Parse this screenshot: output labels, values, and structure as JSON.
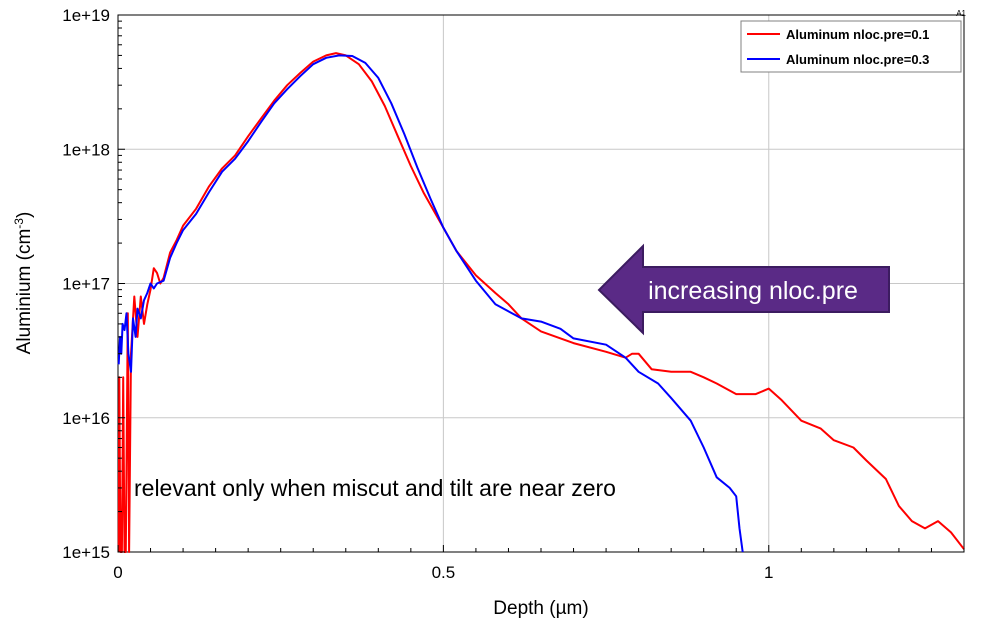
{
  "chart_data": {
    "type": "line",
    "title": "",
    "corner_label": "A1",
    "xlabel": "Depth (µm)",
    "ylabel_main": "Aluminium (cm",
    "ylabel_sup": "-3",
    "ylabel_close": ")",
    "xlim": [
      0,
      1.3
    ],
    "ylim": [
      1000000000000000.0,
      1e+19
    ],
    "yscale": "log",
    "grid": true,
    "xticks": [
      0,
      0.5,
      1
    ],
    "xtick_labels": [
      "0",
      "0.5",
      "1"
    ],
    "yticks": [
      1000000000000000.0,
      1e+16,
      1e+17,
      1e+18,
      1e+19
    ],
    "ytick_labels": [
      "1e+15",
      "1e+16",
      "1e+17",
      "1e+18",
      "1e+19"
    ],
    "legend_position": "top-right",
    "series": [
      {
        "name": "Aluminum nloc.pre=0.1",
        "color": "#ff0000",
        "points": [
          [
            0.001,
            1000000000000000.0
          ],
          [
            0.002,
            2e+16
          ],
          [
            0.003,
            3000000000000000.0
          ],
          [
            0.004,
            1000000000000000.0
          ],
          [
            0.006,
            1000000000000000.0
          ],
          [
            0.008,
            2e+16
          ],
          [
            0.01,
            1000000000000000.0
          ],
          [
            0.012,
            1000000000000000.0
          ],
          [
            0.015,
            6e+16
          ],
          [
            0.017,
            1000000000000000.0
          ],
          [
            0.02,
            3e+16
          ],
          [
            0.025,
            8e+16
          ],
          [
            0.03,
            4e+16
          ],
          [
            0.035,
            8e+16
          ],
          [
            0.04,
            5e+16
          ],
          [
            0.045,
            7e+16
          ],
          [
            0.05,
            9e+16
          ],
          [
            0.055,
            1.3e+17
          ],
          [
            0.06,
            1.2e+17
          ],
          [
            0.065,
            1e+17
          ],
          [
            0.07,
            1.1e+17
          ],
          [
            0.08,
            1.7e+17
          ],
          [
            0.09,
            2.1e+17
          ],
          [
            0.1,
            2.7e+17
          ],
          [
            0.12,
            3.6e+17
          ],
          [
            0.14,
            5.3e+17
          ],
          [
            0.16,
            7.2e+17
          ],
          [
            0.18,
            9e+17
          ],
          [
            0.2,
            1.25e+18
          ],
          [
            0.22,
            1.7e+18
          ],
          [
            0.24,
            2.3e+18
          ],
          [
            0.26,
            3e+18
          ],
          [
            0.28,
            3.7e+18
          ],
          [
            0.3,
            4.5e+18
          ],
          [
            0.32,
            5e+18
          ],
          [
            0.335,
            5.2e+18
          ],
          [
            0.35,
            5e+18
          ],
          [
            0.37,
            4.3e+18
          ],
          [
            0.39,
            3.2e+18
          ],
          [
            0.41,
            2.1e+18
          ],
          [
            0.43,
            1.25e+18
          ],
          [
            0.45,
            7.5e+17
          ],
          [
            0.47,
            4.7e+17
          ],
          [
            0.5,
            2.6e+17
          ],
          [
            0.52,
            1.75e+17
          ],
          [
            0.55,
            1.15e+17
          ],
          [
            0.58,
            8.5e+16
          ],
          [
            0.6,
            7e+16
          ],
          [
            0.62,
            5.5e+16
          ],
          [
            0.65,
            4.4e+16
          ],
          [
            0.7,
            3.6e+16
          ],
          [
            0.75,
            3.1e+16
          ],
          [
            0.78,
            2.8e+16
          ],
          [
            0.79,
            3e+16
          ],
          [
            0.8,
            3e+16
          ],
          [
            0.82,
            2.3e+16
          ],
          [
            0.85,
            2.2e+16
          ],
          [
            0.88,
            2.2e+16
          ],
          [
            0.9,
            2e+16
          ],
          [
            0.92,
            1.8e+16
          ],
          [
            0.95,
            1.5e+16
          ],
          [
            0.98,
            1.5e+16
          ],
          [
            1.0,
            1.65e+16
          ],
          [
            1.02,
            1.35e+16
          ],
          [
            1.05,
            9500000000000000.0
          ],
          [
            1.08,
            8300000000000000.0
          ],
          [
            1.1,
            6800000000000000.0
          ],
          [
            1.13,
            6000000000000000.0
          ],
          [
            1.15,
            4800000000000000.0
          ],
          [
            1.18,
            3500000000000000.0
          ],
          [
            1.2,
            2200000000000000.0
          ],
          [
            1.22,
            1700000000000000.0
          ],
          [
            1.24,
            1500000000000000.0
          ],
          [
            1.26,
            1700000000000000.0
          ],
          [
            1.28,
            1400000000000000.0
          ],
          [
            1.3,
            1050000000000000.0
          ]
        ]
      },
      {
        "name": "Aluminum nloc.pre=0.3",
        "color": "#0000ff",
        "points": [
          [
            0.001,
            2.5e+16
          ],
          [
            0.003,
            4e+16
          ],
          [
            0.005,
            3e+16
          ],
          [
            0.007,
            5e+16
          ],
          [
            0.01,
            4.5e+16
          ],
          [
            0.013,
            6e+16
          ],
          [
            0.016,
            3e+16
          ],
          [
            0.02,
            2.2e+16
          ],
          [
            0.023,
            5.5e+16
          ],
          [
            0.027,
            4e+16
          ],
          [
            0.03,
            6.5e+16
          ],
          [
            0.035,
            5.5e+16
          ],
          [
            0.04,
            7.5e+16
          ],
          [
            0.045,
            8.5e+16
          ],
          [
            0.05,
            1e+17
          ],
          [
            0.055,
            9.2e+16
          ],
          [
            0.06,
            1e+17
          ],
          [
            0.07,
            1.05e+17
          ],
          [
            0.08,
            1.55e+17
          ],
          [
            0.09,
            2e+17
          ],
          [
            0.1,
            2.5e+17
          ],
          [
            0.12,
            3.3e+17
          ],
          [
            0.14,
            4.8e+17
          ],
          [
            0.16,
            6.8e+17
          ],
          [
            0.18,
            8.5e+17
          ],
          [
            0.2,
            1.15e+18
          ],
          [
            0.22,
            1.6e+18
          ],
          [
            0.24,
            2.2e+18
          ],
          [
            0.26,
            2.8e+18
          ],
          [
            0.28,
            3.5e+18
          ],
          [
            0.3,
            4.3e+18
          ],
          [
            0.32,
            4.8e+18
          ],
          [
            0.34,
            5e+18
          ],
          [
            0.36,
            4.95e+18
          ],
          [
            0.38,
            4.4e+18
          ],
          [
            0.4,
            3.4e+18
          ],
          [
            0.42,
            2.2e+18
          ],
          [
            0.44,
            1.3e+18
          ],
          [
            0.46,
            7.3e+17
          ],
          [
            0.48,
            4.3e+17
          ],
          [
            0.5,
            2.6e+17
          ],
          [
            0.52,
            1.75e+17
          ],
          [
            0.55,
            1.05e+17
          ],
          [
            0.58,
            7e+16
          ],
          [
            0.62,
            5.5e+16
          ],
          [
            0.65,
            5.2e+16
          ],
          [
            0.68,
            4.6e+16
          ],
          [
            0.7,
            3.9e+16
          ],
          [
            0.75,
            3.5e+16
          ],
          [
            0.78,
            2.8e+16
          ],
          [
            0.8,
            2.2e+16
          ],
          [
            0.83,
            1.8e+16
          ],
          [
            0.85,
            1.4e+16
          ],
          [
            0.88,
            9500000000000000.0
          ],
          [
            0.9,
            6000000000000000.0
          ],
          [
            0.92,
            3600000000000000.0
          ],
          [
            0.94,
            3000000000000000.0
          ],
          [
            0.95,
            2600000000000000.0
          ],
          [
            0.955,
            1500000000000000.0
          ],
          [
            0.96,
            1000000000000000.0
          ]
        ]
      }
    ],
    "annotations": [
      "increasing nloc.pre",
      "relevant only when miscut and tilt are near zero"
    ]
  },
  "style": {
    "grid_color": "#c8c8c8",
    "axis_color": "#000000",
    "arrow_fill": "#5a2a86",
    "arrow_stroke": "#3c1c60",
    "arrow_text_color": "#ffffff"
  }
}
